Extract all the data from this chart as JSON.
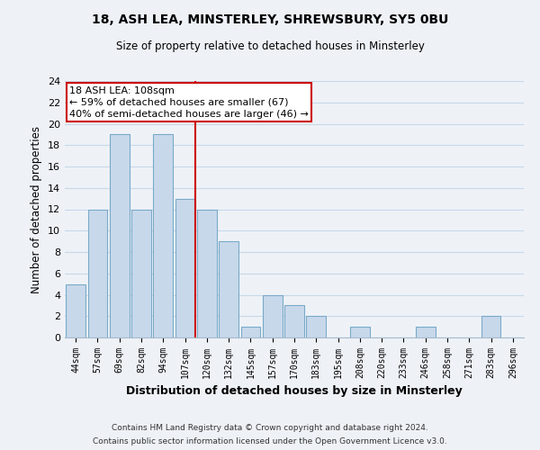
{
  "title_line1": "18, ASH LEA, MINSTERLEY, SHREWSBURY, SY5 0BU",
  "title_line2": "Size of property relative to detached houses in Minsterley",
  "xlabel": "Distribution of detached houses by size in Minsterley",
  "ylabel": "Number of detached properties",
  "bin_labels": [
    "44sqm",
    "57sqm",
    "69sqm",
    "82sqm",
    "94sqm",
    "107sqm",
    "120sqm",
    "132sqm",
    "145sqm",
    "157sqm",
    "170sqm",
    "183sqm",
    "195sqm",
    "208sqm",
    "220sqm",
    "233sqm",
    "246sqm",
    "258sqm",
    "271sqm",
    "283sqm",
    "296sqm"
  ],
  "bar_heights": [
    5,
    12,
    19,
    12,
    19,
    13,
    12,
    9,
    1,
    4,
    3,
    2,
    0,
    1,
    0,
    0,
    1,
    0,
    0,
    2,
    0
  ],
  "bar_color": "#c8d8eb",
  "bar_edge_color": "#7aaac8",
  "highlight_index": 5,
  "highlight_line_color": "#cc0000",
  "ylim": [
    0,
    24
  ],
  "yticks": [
    0,
    2,
    4,
    6,
    8,
    10,
    12,
    14,
    16,
    18,
    20,
    22,
    24
  ],
  "annotation_title": "18 ASH LEA: 108sqm",
  "annotation_line1": "← 59% of detached houses are smaller (67)",
  "annotation_line2": "40% of semi-detached houses are larger (46) →",
  "annotation_box_color": "#ffffff",
  "annotation_box_edge": "#cc0000",
  "footer_line1": "Contains HM Land Registry data © Crown copyright and database right 2024.",
  "footer_line2": "Contains public sector information licensed under the Open Government Licence v3.0.",
  "grid_color": "#c8d8e8",
  "background_color": "#eef2f7"
}
